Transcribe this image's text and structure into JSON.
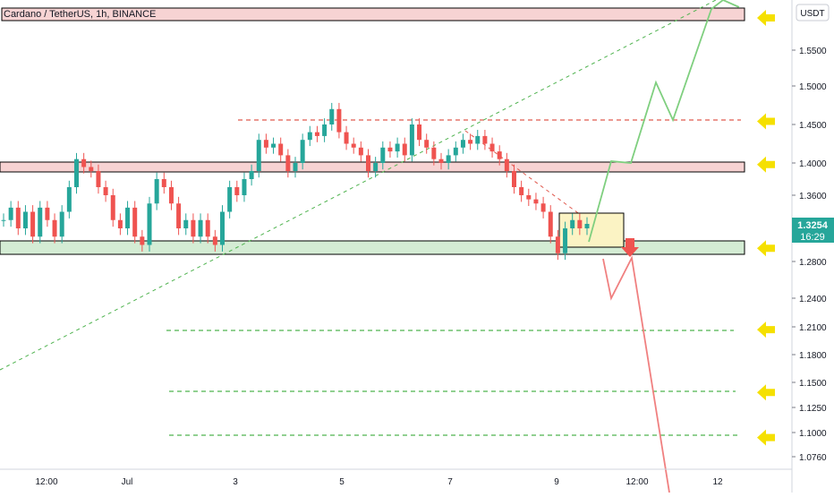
{
  "header": {
    "symbol_title": "Cardano / TetherUS, 1h, BINANCE",
    "currency_button": "USDT"
  },
  "price_badge": {
    "price": "1.3254",
    "countdown": "16:29",
    "color": "#26a69a"
  },
  "colors": {
    "up_candle": "#26a69a",
    "down_candle": "#ef5350",
    "resistance_zone": "#f7d3d3",
    "support_zone": "#d4ecd4",
    "target_box": "#fbf3c4",
    "bull_path": "#7fcf7f",
    "bear_path": "#f08080",
    "arrow_marker": "#f5e000",
    "down_arrow": "#ef5350"
  },
  "icons": [
    "yellow-left-arrow-icon",
    "red-down-arrow-icon"
  ],
  "chart_data": {
    "type": "candlestick",
    "title": "Cardano / TetherUS, 1h, BINANCE",
    "y_tick_labels": [
      "1.5500",
      "1.5000",
      "1.4500",
      "1.4000",
      "1.3600",
      "1.2800",
      "1.2400",
      "1.2100",
      "1.1800",
      "1.1500",
      "1.1250",
      "1.1000",
      "1.0760"
    ],
    "x_tick_labels": [
      "12:00",
      "Jul",
      "3",
      "5",
      "7",
      "9",
      "12:00",
      "12"
    ],
    "ylim": [
      1.05,
      1.6
    ],
    "grid": false,
    "current_price": 1.3254,
    "horizontal_zones": [
      {
        "kind": "resistance",
        "from": 1.591,
        "to": 1.6
      },
      {
        "kind": "resistance",
        "from": 1.392,
        "to": 1.402
      },
      {
        "kind": "support",
        "from": 1.289,
        "to": 1.302
      }
    ],
    "dashed_levels": [
      {
        "value": 1.454,
        "color": "red"
      },
      {
        "value": 1.207,
        "color": "green"
      },
      {
        "value": 1.14,
        "color": "green"
      },
      {
        "value": 1.095,
        "color": "green"
      }
    ],
    "arrow_markers": [
      1.595,
      1.454,
      1.398,
      1.296,
      1.207,
      1.14,
      1.095
    ],
    "price_path": [
      {
        "t": 0,
        "o": 1.33,
        "c": 1.33
      },
      {
        "t": 1,
        "o": 1.33,
        "c": 1.345
      },
      {
        "t": 2,
        "o": 1.345,
        "c": 1.32
      },
      {
        "t": 3,
        "o": 1.32,
        "c": 1.34
      },
      {
        "t": 4,
        "o": 1.34,
        "c": 1.31
      },
      {
        "t": 5,
        "o": 1.31,
        "c": 1.345
      },
      {
        "t": 6,
        "o": 1.345,
        "c": 1.33
      },
      {
        "t": 7,
        "o": 1.33,
        "c": 1.31
      },
      {
        "t": 8,
        "o": 1.31,
        "c": 1.34
      },
      {
        "t": 9,
        "o": 1.34,
        "c": 1.37
      },
      {
        "t": 10,
        "o": 1.37,
        "c": 1.405
      },
      {
        "t": 11,
        "o": 1.405,
        "c": 1.395
      },
      {
        "t": 12,
        "o": 1.395,
        "c": 1.39
      },
      {
        "t": 13,
        "o": 1.39,
        "c": 1.37
      },
      {
        "t": 14,
        "o": 1.37,
        "c": 1.36
      },
      {
        "t": 15,
        "o": 1.36,
        "c": 1.33
      },
      {
        "t": 16,
        "o": 1.33,
        "c": 1.32
      },
      {
        "t": 17,
        "o": 1.32,
        "c": 1.345
      },
      {
        "t": 18,
        "o": 1.345,
        "c": 1.31
      },
      {
        "t": 19,
        "o": 1.31,
        "c": 1.3
      },
      {
        "t": 20,
        "o": 1.3,
        "c": 1.35
      },
      {
        "t": 21,
        "o": 1.35,
        "c": 1.38
      },
      {
        "t": 22,
        "o": 1.38,
        "c": 1.37
      },
      {
        "t": 23,
        "o": 1.37,
        "c": 1.35
      },
      {
        "t": 24,
        "o": 1.35,
        "c": 1.32
      },
      {
        "t": 25,
        "o": 1.32,
        "c": 1.33
      },
      {
        "t": 26,
        "o": 1.33,
        "c": 1.31
      },
      {
        "t": 27,
        "o": 1.31,
        "c": 1.33
      },
      {
        "t": 28,
        "o": 1.33,
        "c": 1.31
      },
      {
        "t": 29,
        "o": 1.31,
        "c": 1.3
      },
      {
        "t": 30,
        "o": 1.3,
        "c": 1.34
      },
      {
        "t": 31,
        "o": 1.34,
        "c": 1.37
      },
      {
        "t": 32,
        "o": 1.37,
        "c": 1.36
      },
      {
        "t": 33,
        "o": 1.36,
        "c": 1.38
      },
      {
        "t": 34,
        "o": 1.38,
        "c": 1.39
      },
      {
        "t": 35,
        "o": 1.39,
        "c": 1.43
      },
      {
        "t": 36,
        "o": 1.43,
        "c": 1.42
      },
      {
        "t": 37,
        "o": 1.42,
        "c": 1.425
      },
      {
        "t": 38,
        "o": 1.425,
        "c": 1.41
      },
      {
        "t": 39,
        "o": 1.41,
        "c": 1.39
      },
      {
        "t": 40,
        "o": 1.39,
        "c": 1.4
      },
      {
        "t": 41,
        "o": 1.4,
        "c": 1.43
      },
      {
        "t": 42,
        "o": 1.43,
        "c": 1.44
      },
      {
        "t": 43,
        "o": 1.44,
        "c": 1.435
      },
      {
        "t": 44,
        "o": 1.435,
        "c": 1.45
      },
      {
        "t": 45,
        "o": 1.45,
        "c": 1.47
      },
      {
        "t": 46,
        "o": 1.47,
        "c": 1.44
      },
      {
        "t": 47,
        "o": 1.44,
        "c": 1.425
      },
      {
        "t": 48,
        "o": 1.425,
        "c": 1.42
      },
      {
        "t": 49,
        "o": 1.42,
        "c": 1.41
      },
      {
        "t": 50,
        "o": 1.41,
        "c": 1.39
      },
      {
        "t": 51,
        "o": 1.39,
        "c": 1.4
      },
      {
        "t": 52,
        "o": 1.4,
        "c": 1.42
      },
      {
        "t": 53,
        "o": 1.42,
        "c": 1.415
      },
      {
        "t": 54,
        "o": 1.415,
        "c": 1.425
      },
      {
        "t": 55,
        "o": 1.425,
        "c": 1.41
      },
      {
        "t": 56,
        "o": 1.41,
        "c": 1.45
      },
      {
        "t": 57,
        "o": 1.45,
        "c": 1.43
      },
      {
        "t": 58,
        "o": 1.43,
        "c": 1.42
      },
      {
        "t": 59,
        "o": 1.42,
        "c": 1.405
      },
      {
        "t": 60,
        "o": 1.405,
        "c": 1.4
      },
      {
        "t": 61,
        "o": 1.4,
        "c": 1.41
      },
      {
        "t": 62,
        "o": 1.41,
        "c": 1.42
      },
      {
        "t": 63,
        "o": 1.42,
        "c": 1.43
      },
      {
        "t": 64,
        "o": 1.43,
        "c": 1.425
      },
      {
        "t": 65,
        "o": 1.425,
        "c": 1.435
      },
      {
        "t": 66,
        "o": 1.435,
        "c": 1.425
      },
      {
        "t": 67,
        "o": 1.425,
        "c": 1.415
      },
      {
        "t": 68,
        "o": 1.415,
        "c": 1.405
      },
      {
        "t": 69,
        "o": 1.405,
        "c": 1.39
      },
      {
        "t": 70,
        "o": 1.39,
        "c": 1.37
      },
      {
        "t": 71,
        "o": 1.37,
        "c": 1.36
      },
      {
        "t": 72,
        "o": 1.36,
        "c": 1.355
      },
      {
        "t": 73,
        "o": 1.355,
        "c": 1.35
      },
      {
        "t": 74,
        "o": 1.35,
        "c": 1.34
      },
      {
        "t": 75,
        "o": 1.34,
        "c": 1.31
      },
      {
        "t": 76,
        "o": 1.31,
        "c": 1.29
      },
      {
        "t": 77,
        "o": 1.29,
        "c": 1.32
      },
      {
        "t": 78,
        "o": 1.32,
        "c": 1.33
      },
      {
        "t": 79,
        "o": 1.33,
        "c": 1.32
      },
      {
        "t": 80,
        "o": 1.32,
        "c": 1.3254
      }
    ],
    "projection_bullish": [
      1.3254,
      1.4,
      1.51,
      1.455,
      1.6
    ],
    "projection_bearish": [
      1.3254,
      1.24,
      1.285,
      1.05
    ]
  }
}
